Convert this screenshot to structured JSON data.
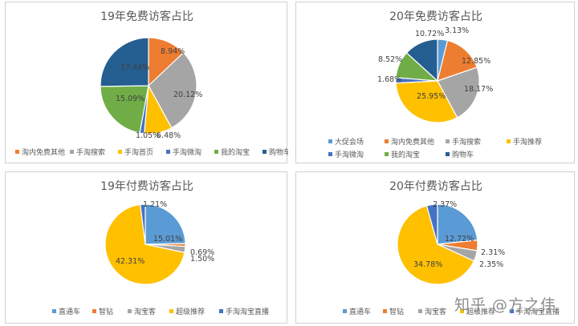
{
  "palette": {
    "blue": "#5B9BD5",
    "orange": "#ED7D31",
    "gray": "#A5A5A5",
    "yellow": "#FFC000",
    "darkblue": "#4472C4",
    "green": "#70AD47",
    "navy": "#255E91"
  },
  "chart_data": [
    {
      "type": "pie",
      "title": "19年免费访客占比",
      "series": [
        {
          "name": "",
          "values": [
            8.94,
            20.12,
            6.48,
            1.05,
            15.09,
            17.44
          ]
        }
      ],
      "categories": [
        "淘内免费其他",
        "手淘搜索",
        "手淘首页",
        "手淘微淘",
        "我的淘宝",
        "购物车"
      ],
      "data_labels": [
        "8.94%",
        "20.12%",
        "6.48%",
        "1.05%",
        "15.09%",
        "17.44%"
      ],
      "colors": [
        "#ED7D31",
        "#A5A5A5",
        "#FFC000",
        "#4472C4",
        "#70AD47",
        "#255E91"
      ],
      "legend": "bottom"
    },
    {
      "type": "pie",
      "title": "20年免费访客占比",
      "series": [
        {
          "name": "",
          "values": [
            3.13,
            12.85,
            18.17,
            25.95,
            1.68,
            8.52,
            10.72
          ]
        }
      ],
      "categories": [
        "大促会场",
        "淘内免费其他",
        "手淘搜索",
        "手淘推荐",
        "手淘微淘",
        "我的淘宝",
        "购物车"
      ],
      "data_labels": [
        "3.13%",
        "12.85%",
        "18.17%",
        "25.95%",
        "1.68%",
        "8.52%",
        "10.72%"
      ],
      "colors": [
        "#5B9BD5",
        "#ED7D31",
        "#A5A5A5",
        "#FFC000",
        "#4472C4",
        "#70AD47",
        "#255E91"
      ],
      "legend": "bottom"
    },
    {
      "type": "pie",
      "title": "19年付费访客占比",
      "series": [
        {
          "name": "",
          "values": [
            15.01,
            0.69,
            1.5,
            42.31,
            1.21
          ]
        }
      ],
      "categories": [
        "直通车",
        "智钻",
        "淘宝客",
        "超级推荐",
        "手淘淘宝直播"
      ],
      "data_labels": [
        "15.01%",
        "0.69%",
        "1.50%",
        "42.31%",
        "1.21%"
      ],
      "colors": [
        "#5B9BD5",
        "#ED7D31",
        "#A5A5A5",
        "#FFC000",
        "#4472C4"
      ],
      "legend": "bottom"
    },
    {
      "type": "pie",
      "title": "20年付费访客占比",
      "series": [
        {
          "name": "",
          "values": [
            12.72,
            2.31,
            2.35,
            34.78,
            2.37
          ]
        }
      ],
      "categories": [
        "直通车",
        "智钻",
        "淘宝客",
        "超级推荐",
        "手淘淘宝直播"
      ],
      "data_labels": [
        "12.72%",
        "2.31%",
        "2.35%",
        "34.78%",
        "2.37%"
      ],
      "colors": [
        "#5B9BD5",
        "#ED7D31",
        "#A5A5A5",
        "#FFC000",
        "#4472C4"
      ],
      "legend": "bottom"
    }
  ],
  "watermark": "知乎 @方之伟"
}
